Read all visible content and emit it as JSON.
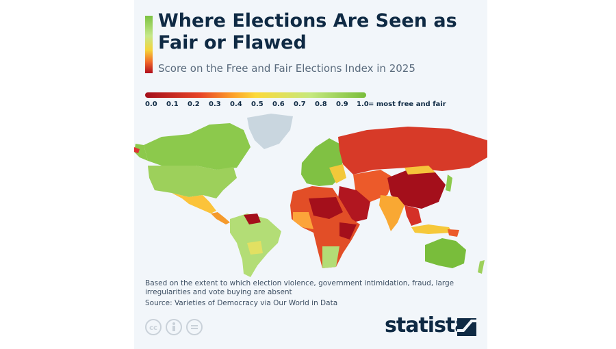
{
  "header": {
    "title": "Where Elections Are Seen as Fair or Flawed",
    "subtitle": "Score on the Free and Fair Elections Index in 2025"
  },
  "legend": {
    "ticks": [
      "0.0",
      "0.1",
      "0.2",
      "0.3",
      "0.4",
      "0.5",
      "0.6",
      "0.7",
      "0.8",
      "0.9",
      "1.0"
    ],
    "end_label": "= most free and fair",
    "colors": {
      "low": "#a40f1b",
      "mid": "#fcd93a",
      "high": "#79bd3b",
      "no_data": "#c9d6df"
    }
  },
  "footer": {
    "note": "Based on the extent to which election violence, government intimidation, fraud, large irregularities and vote buying are absent",
    "source": "Source: Varieties of Democracy via Our World in Data",
    "license_icons": [
      "cc-icon",
      "attribution-icon",
      "no-derivatives-icon"
    ],
    "cc_text": "cc",
    "brand": "statista"
  }
}
